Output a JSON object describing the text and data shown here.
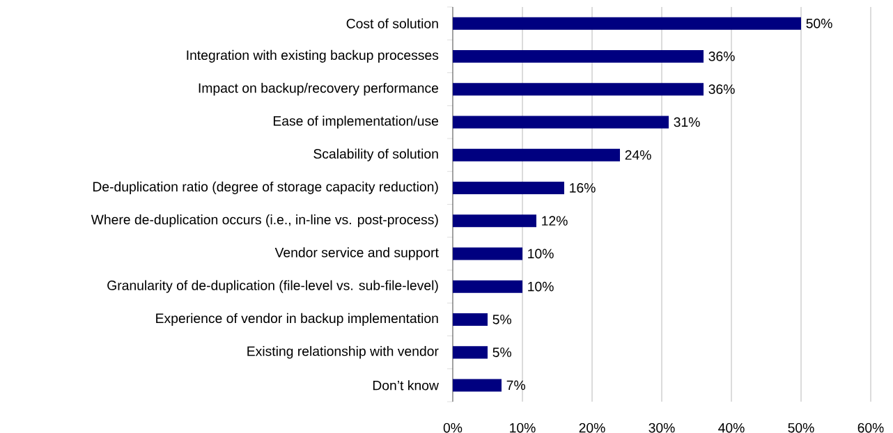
{
  "chart_data": {
    "type": "bar",
    "orientation": "horizontal",
    "categories": [
      "Cost of solution",
      "Integration with existing backup processes",
      "Impact on backup/recovery performance",
      "Ease of implementation/use",
      "Scalability of solution",
      "De-duplication ratio (degree of storage capacity reduction)",
      "Where de-duplication occurs (i.e., in-line vs. post-process)",
      "Vendor service and support",
      "Granularity of de-duplication (file-level vs. sub-file-level)",
      "Experience of vendor in backup implementation",
      "Existing relationship with vendor",
      "Don’t know"
    ],
    "values": [
      50,
      36,
      36,
      31,
      24,
      16,
      12,
      10,
      10,
      5,
      5,
      7
    ],
    "value_labels": [
      "50%",
      "36%",
      "36%",
      "31%",
      "24%",
      "16%",
      "12%",
      "10%",
      "10%",
      "5%",
      "5%",
      "7%"
    ],
    "color": "#000080",
    "xlim": [
      0,
      60
    ],
    "xticks": [
      {
        "value": 0,
        "label": "0%"
      },
      {
        "value": 10,
        "label": "10%"
      },
      {
        "value": 20,
        "label": "20%"
      },
      {
        "value": 30,
        "label": "30%"
      },
      {
        "value": 40,
        "label": "40%"
      },
      {
        "value": 50,
        "label": "50%"
      },
      {
        "value": 60,
        "label": "60%"
      }
    ],
    "grid": "x"
  }
}
